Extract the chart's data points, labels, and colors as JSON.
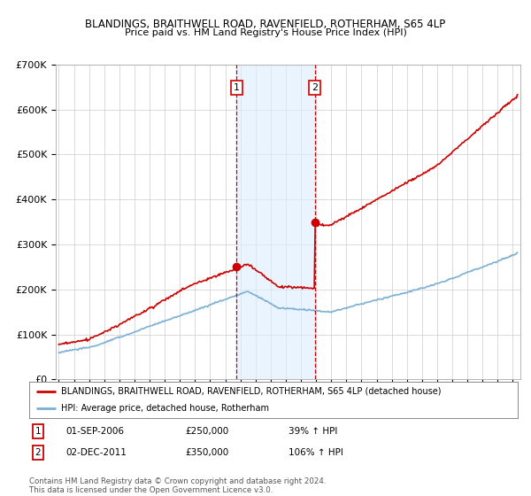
{
  "title1": "BLANDINGS, BRAITHWELL ROAD, RAVENFIELD, ROTHERHAM, S65 4LP",
  "title2": "Price paid vs. HM Land Registry's House Price Index (HPI)",
  "ylim": [
    0,
    700000
  ],
  "yticks": [
    0,
    100000,
    200000,
    300000,
    400000,
    500000,
    600000,
    700000
  ],
  "ytick_labels": [
    "£0",
    "£100K",
    "£200K",
    "£300K",
    "£400K",
    "£500K",
    "£600K",
    "£700K"
  ],
  "xlim_start": 1994.8,
  "xlim_end": 2025.5,
  "bg_color": "#ffffff",
  "plot_bg_color": "#ffffff",
  "grid_color": "#cccccc",
  "hpi_color": "#7bafd4",
  "price_color": "#cc0000",
  "shade_color": "#ddeeff",
  "marker1_date": 2006.75,
  "marker2_date": 2011.92,
  "marker1_price": 250000,
  "marker2_price": 350000,
  "dashed_color": "#cc0000",
  "legend_line1": "BLANDINGS, BRAITHWELL ROAD, RAVENFIELD, ROTHERHAM, S65 4LP (detached house)",
  "legend_line2": "HPI: Average price, detached house, Rotherham",
  "note1_num": "1",
  "note1_date": "01-SEP-2006",
  "note1_price": "£250,000",
  "note1_hpi": "39% ↑ HPI",
  "note2_num": "2",
  "note2_date": "02-DEC-2011",
  "note2_price": "£350,000",
  "note2_hpi": "106% ↑ HPI",
  "copyright": "Contains HM Land Registry data © Crown copyright and database right 2024.\nThis data is licensed under the Open Government Licence v3.0."
}
